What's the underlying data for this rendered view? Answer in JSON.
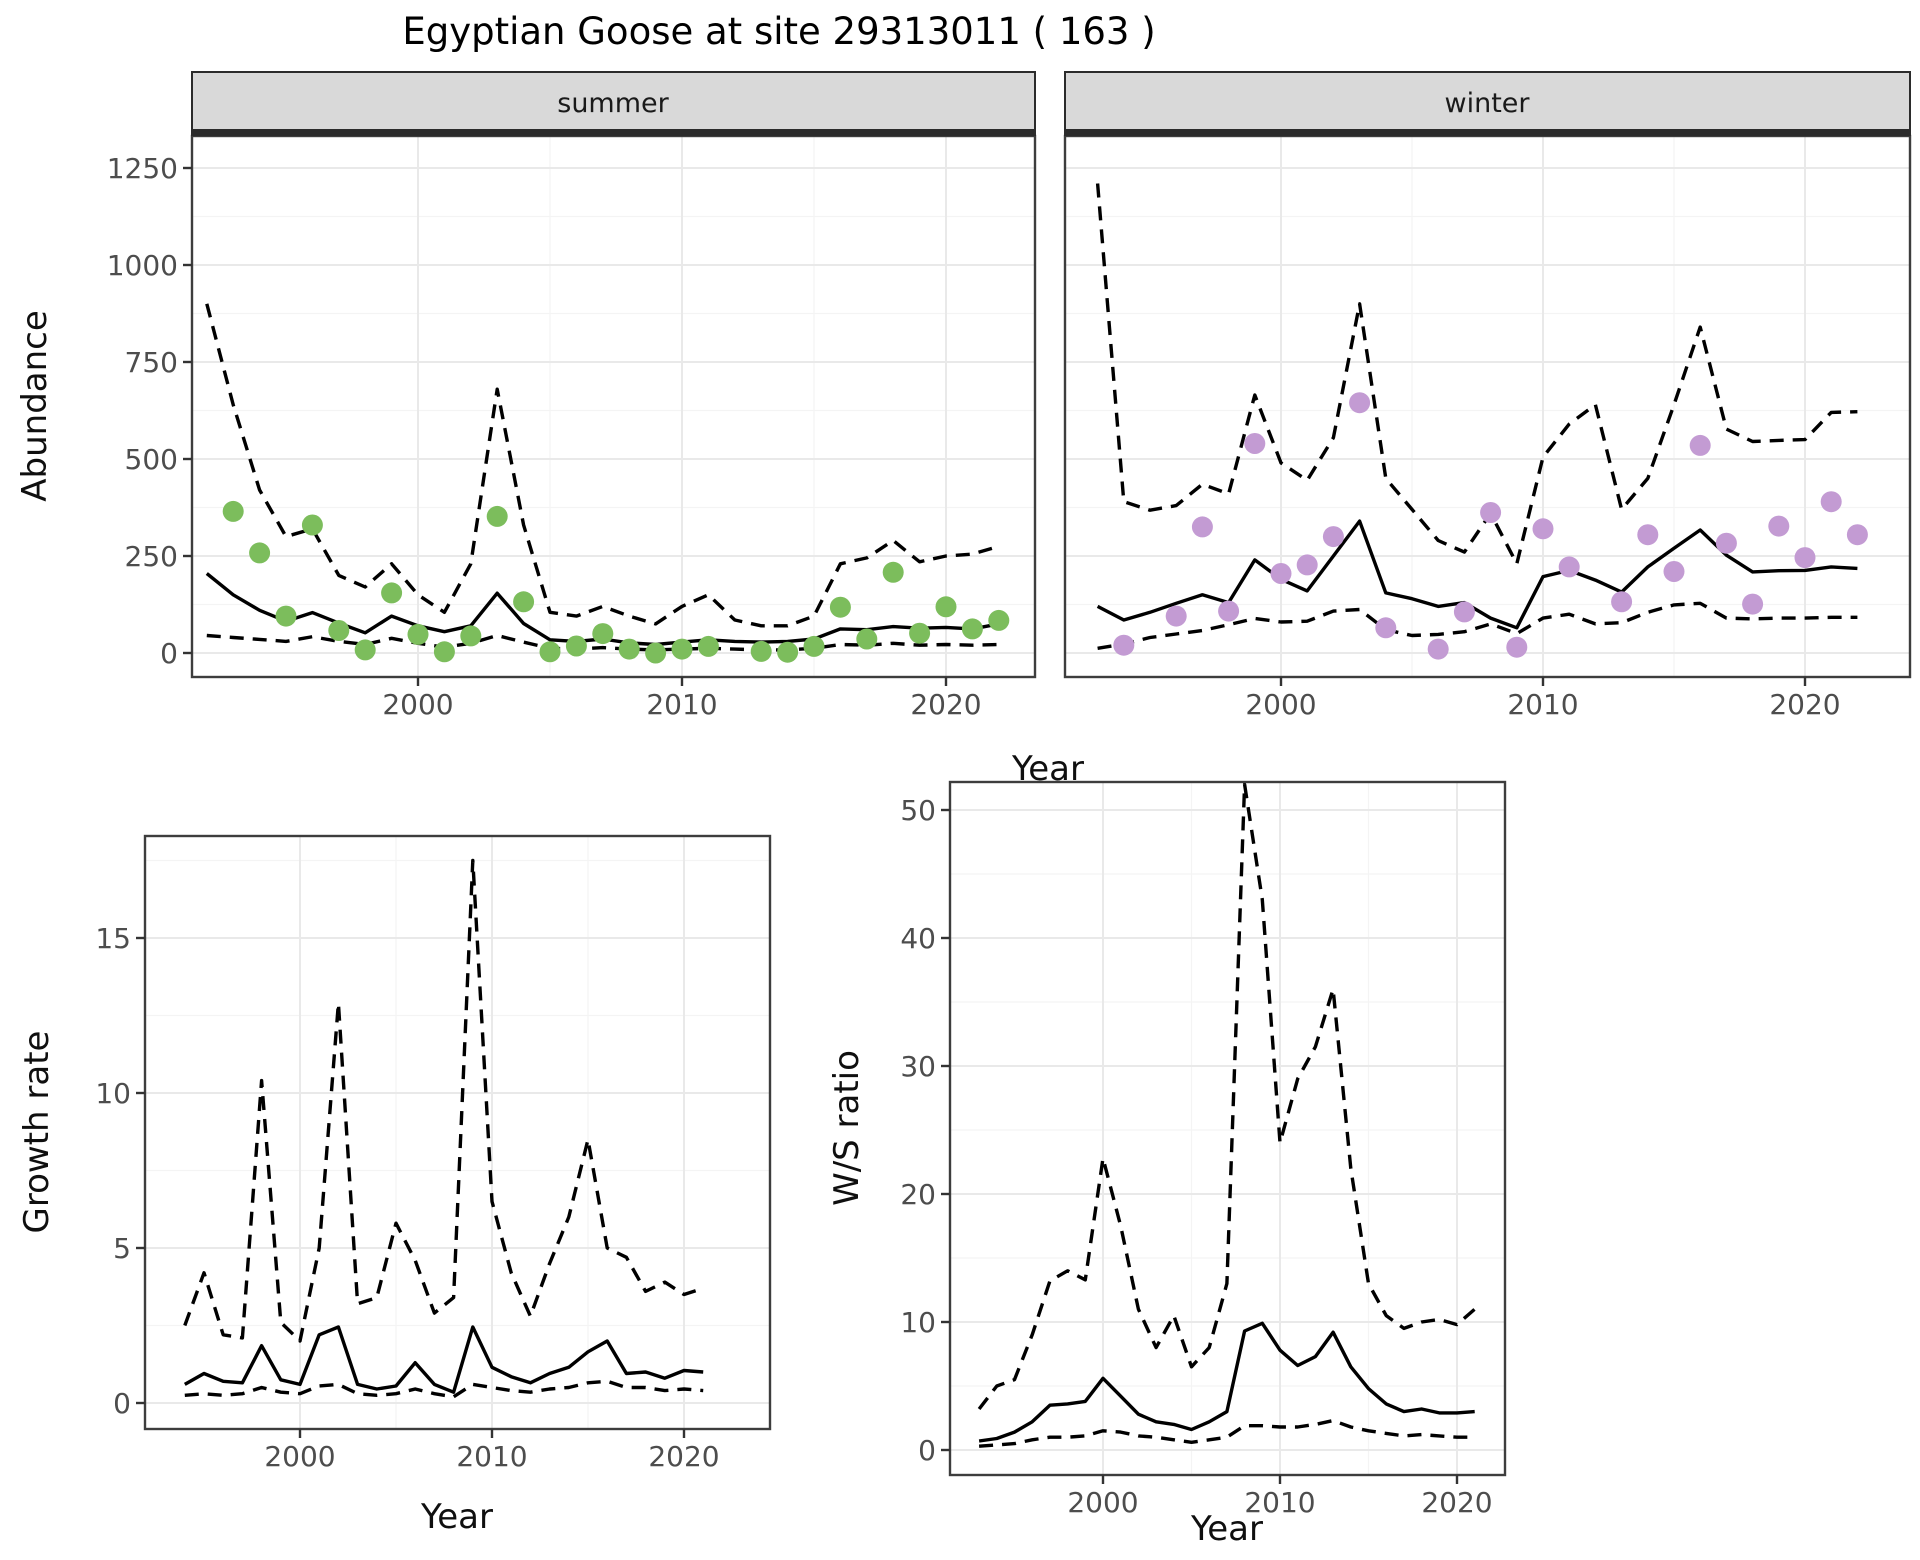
{
  "title": "Egyptian Goose at site 29313011 ( 163 )",
  "strips": {
    "summer": "summer",
    "winter": "winter"
  },
  "axis_titles": {
    "abundance": "Abundance",
    "year_top": "Year",
    "growth": "Growth rate",
    "year_growth": "Year",
    "ws": "W/S ratio",
    "year_ws": "Year"
  },
  "colors": {
    "summer_point": "#7CBD5C",
    "winter_point": "#C39BD3",
    "line": "#000000",
    "strip_bg": "#D9D9D9"
  },
  "chart_data": [
    {
      "id": "abundance_summer",
      "type": "line",
      "title": "summer",
      "ylabel": "Abundance",
      "xlabel": "Year",
      "xticks": [
        2000,
        2010,
        2020
      ],
      "yticks": [
        0,
        250,
        500,
        750,
        1000,
        1250
      ],
      "ylim": [
        0,
        1300
      ],
      "years": [
        1992,
        1993,
        1994,
        1995,
        1996,
        1997,
        1998,
        1999,
        2000,
        2001,
        2002,
        2003,
        2004,
        2005,
        2006,
        2007,
        2008,
        2009,
        2010,
        2011,
        2012,
        2013,
        2014,
        2015,
        2016,
        2017,
        2018,
        2019,
        2020,
        2021,
        2022
      ],
      "points": [
        null,
        365,
        258,
        95,
        330,
        58,
        8,
        155,
        48,
        3,
        44,
        352,
        132,
        3,
        18,
        50,
        10,
        0,
        10,
        17,
        null,
        4,
        2,
        17,
        118,
        36,
        208,
        51,
        119,
        62,
        84
      ],
      "fit": [
        205,
        150,
        110,
        82,
        104,
        77,
        52,
        95,
        70,
        55,
        70,
        154,
        76,
        34,
        30,
        36,
        26,
        22,
        28,
        34,
        30,
        28,
        30,
        36,
        62,
        60,
        68,
        64,
        66,
        62,
        75
      ],
      "upper": [
        900,
        640,
        420,
        300,
        320,
        200,
        170,
        230,
        150,
        105,
        230,
        680,
        330,
        105,
        95,
        120,
        95,
        75,
        120,
        150,
        85,
        70,
        70,
        95,
        230,
        245,
        290,
        235,
        250,
        255,
        275
      ],
      "lower": [
        45,
        40,
        35,
        30,
        42,
        30,
        22,
        38,
        25,
        15,
        25,
        45,
        28,
        12,
        10,
        14,
        10,
        8,
        10,
        12,
        10,
        8,
        8,
        12,
        22,
        20,
        25,
        20,
        22,
        20,
        22
      ]
    },
    {
      "id": "abundance_winter",
      "type": "line",
      "title": "winter",
      "ylabel": "Abundance",
      "xlabel": "Year",
      "xticks": [
        2000,
        2010,
        2020
      ],
      "yticks": [
        0,
        250,
        500,
        750,
        1000,
        1250
      ],
      "ylim": [
        0,
        1300
      ],
      "years": [
        1993,
        1994,
        1995,
        1996,
        1997,
        1998,
        1999,
        2000,
        2001,
        2002,
        2003,
        2004,
        2005,
        2006,
        2007,
        2008,
        2009,
        2010,
        2011,
        2012,
        2013,
        2014,
        2015,
        2016,
        2017,
        2018,
        2019,
        2020,
        2021,
        2022
      ],
      "points": [
        null,
        20,
        null,
        95,
        325,
        108,
        540,
        205,
        227,
        300,
        645,
        65,
        null,
        10,
        106,
        362,
        15,
        320,
        222,
        null,
        132,
        305,
        210,
        535,
        283,
        126,
        327,
        246,
        390,
        305
      ],
      "fit": [
        120,
        85,
        105,
        128,
        150,
        130,
        240,
        190,
        160,
        250,
        340,
        155,
        140,
        120,
        130,
        90,
        65,
        197,
        213,
        188,
        157,
        222,
        270,
        317,
        252,
        209,
        212,
        213,
        222,
        218
      ],
      "upper": [
        1210,
        390,
        368,
        380,
        435,
        410,
        665,
        490,
        445,
        555,
        900,
        450,
        370,
        290,
        260,
        360,
        230,
        505,
        590,
        640,
        370,
        450,
        640,
        840,
        577,
        545,
        548,
        550,
        620,
        622
      ],
      "lower": [
        12,
        23,
        40,
        49,
        58,
        73,
        89,
        80,
        82,
        108,
        112,
        60,
        45,
        48,
        55,
        75,
        50,
        90,
        100,
        75,
        78,
        105,
        124,
        128,
        90,
        88,
        90,
        90,
        92,
        92
      ]
    },
    {
      "id": "growth_rate",
      "type": "line",
      "title": "Growth rate",
      "ylabel": "Growth rate",
      "xlabel": "Year",
      "xticks": [
        2000,
        2010,
        2020
      ],
      "yticks": [
        0,
        5,
        10,
        15
      ],
      "ylim": [
        0,
        18.5
      ],
      "years": [
        1994,
        1995,
        1996,
        1997,
        1998,
        1999,
        2000,
        2001,
        2002,
        2003,
        2004,
        2005,
        2006,
        2007,
        2008,
        2009,
        2010,
        2011,
        2012,
        2013,
        2014,
        2015,
        2016,
        2017,
        2018,
        2019,
        2020,
        2021
      ],
      "points": null,
      "fit": [
        0.6,
        0.95,
        0.7,
        0.65,
        1.85,
        0.75,
        0.6,
        2.2,
        2.45,
        0.6,
        0.45,
        0.55,
        1.3,
        0.6,
        0.35,
        2.45,
        1.15,
        0.85,
        0.65,
        0.95,
        1.15,
        1.65,
        2.0,
        0.95,
        1.0,
        0.8,
        1.05,
        1.0
      ],
      "upper": [
        2.5,
        4.2,
        2.2,
        2.1,
        10.4,
        2.6,
        2.0,
        5.0,
        12.9,
        3.2,
        3.4,
        5.8,
        4.6,
        2.9,
        3.4,
        17.5,
        6.5,
        4.2,
        2.8,
        4.5,
        6.0,
        8.5,
        5.0,
        4.7,
        3.6,
        3.9,
        3.5,
        3.7
      ],
      "lower": [
        0.25,
        0.3,
        0.25,
        0.3,
        0.5,
        0.35,
        0.3,
        0.55,
        0.6,
        0.3,
        0.25,
        0.3,
        0.45,
        0.3,
        0.2,
        0.6,
        0.5,
        0.4,
        0.35,
        0.45,
        0.5,
        0.65,
        0.7,
        0.5,
        0.5,
        0.4,
        0.45,
        0.4
      ]
    },
    {
      "id": "ws_ratio",
      "type": "line",
      "title": "W/S ratio",
      "ylabel": "W/S ratio",
      "xlabel": "Year",
      "xticks": [
        2000,
        2010,
        2020
      ],
      "yticks": [
        0,
        10,
        20,
        30,
        40,
        50
      ],
      "ylim": [
        0,
        52.5
      ],
      "years": [
        1993,
        1994,
        1995,
        1996,
        1997,
        1998,
        1999,
        2000,
        2001,
        2002,
        2003,
        2004,
        2005,
        2006,
        2007,
        2008,
        2009,
        2010,
        2011,
        2012,
        2013,
        2014,
        2015,
        2016,
        2017,
        2018,
        2019,
        2020,
        2021
      ],
      "points": null,
      "fit": [
        0.7,
        0.9,
        1.4,
        2.2,
        3.5,
        3.6,
        3.8,
        5.6,
        4.2,
        2.8,
        2.2,
        2.0,
        1.6,
        2.2,
        3.0,
        9.3,
        9.9,
        7.8,
        6.6,
        7.3,
        9.2,
        6.5,
        4.8,
        3.6,
        3.0,
        3.2,
        2.9,
        2.9,
        3.0
      ],
      "upper": [
        3.2,
        5.0,
        5.5,
        9.0,
        13.2,
        14.0,
        13.3,
        22.8,
        17.5,
        11.0,
        8.0,
        10.5,
        6.5,
        8.0,
        13.0,
        52.0,
        43.0,
        24.0,
        29.0,
        31.5,
        36.0,
        22.0,
        13.0,
        10.5,
        9.5,
        10.0,
        10.2,
        9.8,
        11.0
      ],
      "lower": [
        0.3,
        0.4,
        0.5,
        0.8,
        1.0,
        1.0,
        1.1,
        1.5,
        1.4,
        1.1,
        1.0,
        0.8,
        0.6,
        0.8,
        1.0,
        1.9,
        1.9,
        1.8,
        1.8,
        2.0,
        2.3,
        1.8,
        1.5,
        1.3,
        1.1,
        1.2,
        1.1,
        1.0,
        1.0
      ]
    }
  ]
}
